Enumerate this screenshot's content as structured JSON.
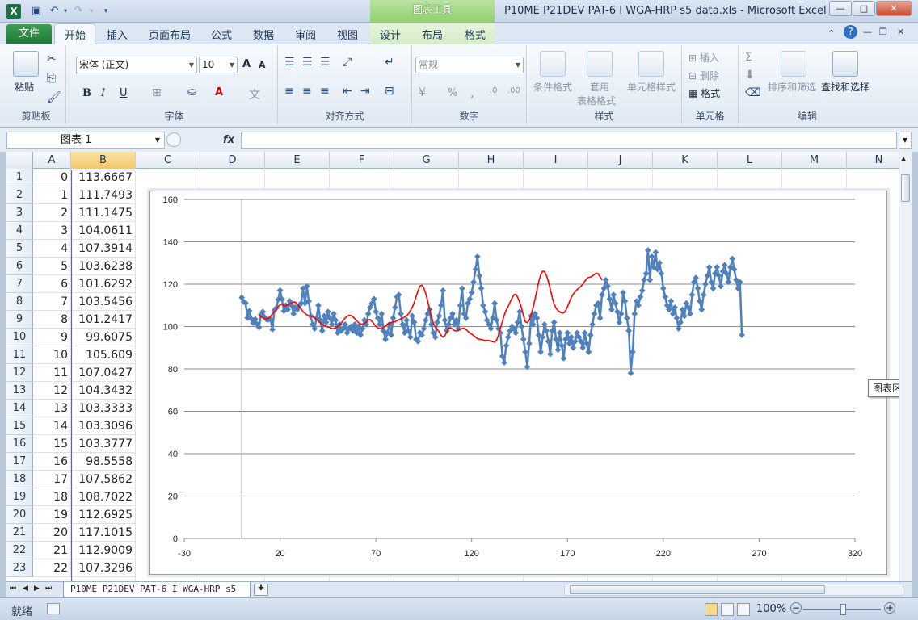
{
  "window": {
    "title": "P10ME P21DEV PAT-6 I WGA-HRP s5 data.xls  -  Microsoft Excel ...",
    "app_icon": "X",
    "context_tab": "图表工具",
    "btn_min": "—",
    "btn_max": "□",
    "btn_close": "✕"
  },
  "quick_access": {
    "save_icon": "floppy-disk-icon",
    "undo_icon": "undo-icon",
    "redo_icon": "redo-icon",
    "customize_icon": "chevron-down-icon"
  },
  "tabs": {
    "file": "文件",
    "home": "开始",
    "insert": "插入",
    "page_layout": "页面布局",
    "formulas": "公式",
    "data": "数据",
    "review": "审阅",
    "view": "视图",
    "design": "设计",
    "layout": "布局",
    "format": "格式"
  },
  "ribbon": {
    "clipboard": {
      "label": "剪贴板",
      "paste": "粘贴"
    },
    "font": {
      "label": "字体",
      "font_name": "宋体 (正文)",
      "font_size": "10",
      "bold": "B",
      "italic": "I",
      "underline": "U",
      "grow": "A",
      "shrink": "A"
    },
    "alignment": {
      "label": "对齐方式"
    },
    "number": {
      "label": "数字",
      "format": "常规",
      "percent": "%",
      "comma": ","
    },
    "styles": {
      "label": "样式",
      "conditional": "条件格式",
      "table_1": "套用",
      "table_2": "表格格式",
      "cell_styles": "单元格样式"
    },
    "cells": {
      "label": "单元格",
      "insert": "插入",
      "delete": "删除",
      "format": "格式"
    },
    "editing": {
      "label": "编辑",
      "sort_filter": "排序和筛选",
      "find_select": "查找和选择",
      "sum": "Σ"
    }
  },
  "formula_bar": {
    "name_box": "图表 1",
    "fx": "fx",
    "value": ""
  },
  "grid": {
    "columns": [
      "A",
      "B",
      "C",
      "D",
      "E",
      "F",
      "G",
      "H",
      "I",
      "J",
      "K",
      "L",
      "M",
      "N"
    ],
    "rows": [
      {
        "n": "1",
        "a": "0",
        "b": "113.6667"
      },
      {
        "n": "2",
        "a": "1",
        "b": "111.7493"
      },
      {
        "n": "3",
        "a": "2",
        "b": "111.1475"
      },
      {
        "n": "4",
        "a": "3",
        "b": "104.0611"
      },
      {
        "n": "5",
        "a": "4",
        "b": "107.3914"
      },
      {
        "n": "6",
        "a": "5",
        "b": "103.6238"
      },
      {
        "n": "7",
        "a": "6",
        "b": "101.6292"
      },
      {
        "n": "8",
        "a": "7",
        "b": "103.5456"
      },
      {
        "n": "9",
        "a": "8",
        "b": "101.2417"
      },
      {
        "n": "10",
        "a": "9",
        "b": "99.6075"
      },
      {
        "n": "11",
        "a": "10",
        "b": "105.609"
      },
      {
        "n": "12",
        "a": "11",
        "b": "107.0427"
      },
      {
        "n": "13",
        "a": "12",
        "b": "104.3432"
      },
      {
        "n": "14",
        "a": "13",
        "b": "103.3333"
      },
      {
        "n": "15",
        "a": "14",
        "b": "103.3096"
      },
      {
        "n": "16",
        "a": "15",
        "b": "103.3777"
      },
      {
        "n": "17",
        "a": "16",
        "b": "98.5558"
      },
      {
        "n": "18",
        "a": "17",
        "b": "107.5862"
      },
      {
        "n": "19",
        "a": "18",
        "b": "108.7022"
      },
      {
        "n": "20",
        "a": "19",
        "b": "112.6925"
      },
      {
        "n": "21",
        "a": "20",
        "b": "117.1015"
      },
      {
        "n": "22",
        "a": "21",
        "b": "112.9009"
      },
      {
        "n": "23",
        "a": "22",
        "b": "107.3296"
      }
    ]
  },
  "chart_tooltip": "图表区",
  "chart_data": {
    "type": "scatter",
    "title": "",
    "xlabel": "",
    "ylabel": "",
    "xlim": [
      -30,
      320
    ],
    "ylim": [
      0,
      160
    ],
    "x_ticks": [
      -30,
      20,
      70,
      120,
      170,
      220,
      270,
      320
    ],
    "y_ticks": [
      0,
      20,
      40,
      60,
      80,
      100,
      120,
      140,
      160
    ],
    "grid": "horizontal",
    "legend": "none",
    "series": [
      {
        "style": "line-with-diamond-markers",
        "color": "#4f81bd",
        "x_start": 0,
        "x_step": 1,
        "values": [
          113.7,
          111.7,
          111.1,
          104.1,
          107.4,
          103.6,
          101.6,
          103.5,
          101.2,
          99.6,
          105.6,
          107.0,
          104.3,
          103.3,
          103.3,
          103.4,
          98.6,
          107.6,
          108.7,
          112.7,
          117.1,
          112.9,
          107.3,
          110.0,
          108.0,
          112.0,
          110.0,
          106.0,
          109.0,
          108.0,
          110.0,
          111.0,
          118.0,
          111.0,
          119.0,
          112.0,
          105.0,
          101.0,
          99.0,
          104.0,
          110.0,
          103.0,
          98.0,
          105.0,
          102.0,
          107.0,
          104.0,
          101.0,
          106.0,
          103.0,
          97.0,
          101.0,
          98.0,
          99.0,
          101.0,
          97.0,
          99.0,
          100.0,
          98.0,
          101.0,
          97.0,
          100.0,
          96.0,
          99.0,
          103.0,
          101.0,
          106.0,
          109.0,
          111.0,
          113.0,
          107.0,
          104.0,
          101.0,
          106.0,
          98.0,
          94.0,
          97.0,
          101.0,
          96.0,
          104.0,
          109.0,
          114.0,
          115.0,
          106.0,
          101.0,
          97.0,
          103.0,
          98.0,
          95.0,
          105.0,
          102.0,
          94.0,
          93.0,
          97.0,
          96.0,
          99.0,
          103.0,
          106.0,
          108.0,
          101.0,
          97.0,
          95.0,
          102.0,
          105.0,
          110.0,
          117.0,
          103.0,
          98.0,
          101.0,
          104.0,
          106.0,
          101.0,
          103.0,
          99.0,
          110.0,
          118.0,
          106.0,
          104.0,
          111.0,
          113.0,
          116.0,
          121.0,
          127.0,
          133.0,
          124.0,
          118.0,
          110.0,
          107.0,
          103.0,
          101.0,
          99.0,
          104.0,
          111.0,
          103.0,
          99.0,
          97.0,
          86.0,
          83.0,
          91.0,
          95.0,
          98.0,
          100.0,
          99.0,
          97.0,
          102.0,
          107.0,
          100.0,
          94.0,
          88.0,
          81.0,
          92.0,
          105.0,
          101.0,
          106.0,
          104.0,
          96.0,
          88.0,
          95.0,
          101.0,
          98.0,
          93.0,
          87.0,
          98.0,
          102.0,
          94.0,
          89.0,
          97.0,
          91.0,
          85.0,
          94.0,
          97.0,
          92.0,
          95.0,
          90.0,
          93.0,
          97.0,
          95.0,
          93.0,
          90.0,
          97.0,
          92.0,
          88.0,
          96.0,
          101.0,
          106.0,
          110.0,
          111.0,
          104.0,
          115.0,
          118.0,
          122.0,
          119.0,
          113.0,
          108.0,
          115.0,
          111.0,
          107.0,
          102.0,
          106.0,
          116.0,
          112.0,
          104.0,
          98.0,
          78.0,
          88.0,
          106.0,
          112.0,
          110.0,
          114.0,
          117.0,
          122.0,
          125.0,
          136.0,
          122.0,
          133.0,
          128.0,
          135.0,
          127.0,
          130.0,
          125.0,
          118.0,
          114.0,
          110.0,
          108.0,
          112.0,
          106.0,
          109.0,
          104.0,
          99.0,
          102.0,
          108.0,
          105.0,
          111.0,
          109.0,
          106.0,
          115.0,
          121.0,
          123.0,
          118.0,
          112.0,
          108.0,
          115.0,
          120.0,
          124.0,
          128.0,
          121.0,
          118.0,
          125.0,
          128.0,
          124.0,
          119.0,
          126.0,
          129.0,
          125.0,
          121.0,
          128.0,
          132.0,
          127.0,
          122.0,
          118.0,
          121.0,
          96.0
        ]
      },
      {
        "style": "line",
        "color": "#ff0000",
        "x_start": 9,
        "x_step": 1,
        "values": [
          105.4,
          104.6,
          104.2,
          103.8,
          103.6,
          103.9,
          104.8,
          106.0,
          107.0,
          108.0,
          109.5,
          110.3,
          110.5,
          110.0,
          109.8,
          110.3,
          110.6,
          111.1,
          111.6,
          111.5,
          110.5,
          109.3,
          108.3,
          107.0,
          106.2,
          105.5,
          105.0,
          104.9,
          104.6,
          104.1,
          103.4,
          102.5,
          101.7,
          101.1,
          100.5,
          100.1,
          99.8,
          99.5,
          99.0,
          99.1,
          99.4,
          99.9,
          100.7,
          101.8,
          102.9,
          104.1,
          104.8,
          105.3,
          105.2,
          104.6,
          103.7,
          102.8,
          101.8,
          101.2,
          101.1,
          101.4,
          102.2,
          103.1,
          103.3,
          102.4,
          101.2,
          100.1,
          99.3,
          99.0,
          99.2,
          99.6,
          100.2,
          100.9,
          101.5,
          101.9,
          102.2,
          102.3,
          102.8,
          103.2,
          103.5,
          104.0,
          104.5,
          105.1,
          106.0,
          107.5,
          109.1,
          111.3,
          114.2,
          117.0,
          119.1,
          119.5,
          118.3,
          115.6,
          112.0,
          108.3,
          104.7,
          101.6,
          99.6,
          98.7,
          97.5,
          95.9,
          95.0,
          95.7,
          97.4,
          99.3,
          99.4,
          98.8,
          98.1,
          97.9,
          98.2,
          98.6,
          99.1,
          99.2,
          98.6,
          97.8,
          97.0,
          96.4,
          95.7,
          95.0,
          94.3,
          94.0,
          93.9,
          93.6,
          93.4,
          93.5,
          93.4,
          93.1,
          92.8,
          92.6,
          93.6,
          96.0,
          99.3,
          102.4,
          105.4,
          107.8,
          109.5,
          111.4,
          113.4,
          114.9,
          115.3,
          113.8,
          111.6,
          108.8,
          105.1,
          102.3,
          101.8,
          103.1,
          105.5,
          108.8,
          112.8,
          117.0,
          121.2,
          124.4,
          126.1,
          126.0,
          124.1,
          121.2,
          117.6,
          113.8,
          110.6,
          108.7,
          107.6,
          106.9,
          106.4,
          106.4,
          107.5,
          109.4,
          111.7,
          113.8,
          115.4,
          116.4,
          117.4,
          118.2,
          119.0,
          120.0,
          121.4,
          122.6,
          123.2,
          123.4,
          123.8,
          124.6,
          125.2,
          124.9,
          123.5,
          122.0
        ]
      }
    ]
  },
  "sheet_tabs": {
    "active": "P10ME P21DEV PAT-6 I WGA-HRP s5",
    "nav_first": "⏮",
    "nav_prev": "◀",
    "nav_next": "▶",
    "nav_last": "⏭"
  },
  "status": {
    "ready": "就绪",
    "zoom": "100%",
    "zoom_out": "−",
    "zoom_in": "+"
  }
}
